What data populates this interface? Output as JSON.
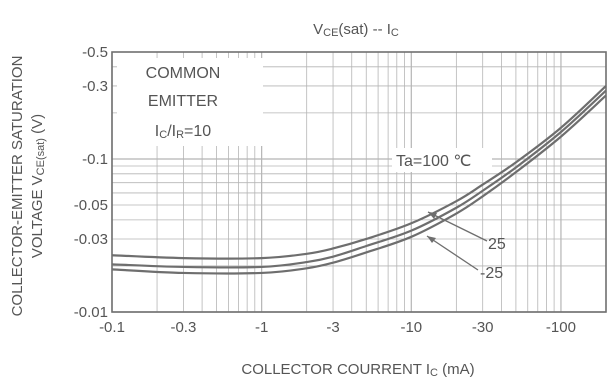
{
  "chart_data": {
    "type": "line",
    "title": {
      "main": "V",
      "sub1": "CE",
      "mid": "(sat) -- I",
      "sub2": "C"
    },
    "xlabel": {
      "main": "COLLECTOR COURRENT I",
      "sub": "C",
      "unit": " (mA)"
    },
    "ylabel_line1": "COLLECTOR-EMITTER SATURATION",
    "ylabel_line2": {
      "main": "VOLTAGE V",
      "sub": "CE(sat)",
      "unit": " (V)"
    },
    "x_scale": "log",
    "y_scale": "log",
    "xlim": [
      -0.1,
      -200
    ],
    "ylim": [
      -0.01,
      -0.5
    ],
    "grid": true,
    "x_major_ticks": [
      {
        "value": -0.1,
        "label": "-0.1"
      },
      {
        "value": -0.3,
        "label": "-0.3"
      },
      {
        "value": -1,
        "label": "-1"
      },
      {
        "value": -3,
        "label": "-3"
      },
      {
        "value": -10,
        "label": "-10"
      },
      {
        "value": -30,
        "label": "-30"
      },
      {
        "value": -100,
        "label": "-100"
      }
    ],
    "y_major_ticks": [
      {
        "value": -0.5,
        "label": "-0.5"
      },
      {
        "value": -0.3,
        "label": "-0.3"
      },
      {
        "value": -0.1,
        "label": "-0.1"
      },
      {
        "value": -0.05,
        "label": "-0.05"
      },
      {
        "value": -0.03,
        "label": "-0.03"
      },
      {
        "value": -0.01,
        "label": "-0.01"
      }
    ],
    "conditions": {
      "line1": "COMMON",
      "line2": "EMITTER",
      "line3": {
        "a": "I",
        "a_sub": "C",
        "mid": "/I",
        "b_sub": "R",
        "tail": "=10"
      }
    },
    "series": [
      {
        "label": "Ta=100 ℃",
        "x": [
          -0.1,
          -0.3,
          -1,
          -2,
          -3,
          -5,
          -10,
          -20,
          -30,
          -50,
          -100,
          -200
        ],
        "y": [
          -0.0235,
          -0.0225,
          -0.0225,
          -0.024,
          -0.026,
          -0.03,
          -0.038,
          -0.053,
          -0.068,
          -0.095,
          -0.16,
          -0.3
        ]
      },
      {
        "label": "25",
        "x": [
          -0.1,
          -0.3,
          -1,
          -2,
          -3,
          -5,
          -10,
          -20,
          -30,
          -50,
          -100,
          -200
        ],
        "y": [
          -0.0205,
          -0.0197,
          -0.0197,
          -0.0212,
          -0.023,
          -0.027,
          -0.034,
          -0.048,
          -0.062,
          -0.088,
          -0.15,
          -0.28
        ]
      },
      {
        "label": "-25",
        "x": [
          -0.1,
          -0.3,
          -1,
          -2,
          -3,
          -5,
          -10,
          -20,
          -30,
          -50,
          -100,
          -200
        ],
        "y": [
          -0.019,
          -0.018,
          -0.018,
          -0.0193,
          -0.021,
          -0.0245,
          -0.031,
          -0.044,
          -0.057,
          -0.082,
          -0.14,
          -0.26
        ]
      }
    ],
    "colors": {
      "line": "#6e6e6e",
      "grid": "#b5b5b5",
      "frame": "#707070",
      "text": "#555555"
    }
  }
}
